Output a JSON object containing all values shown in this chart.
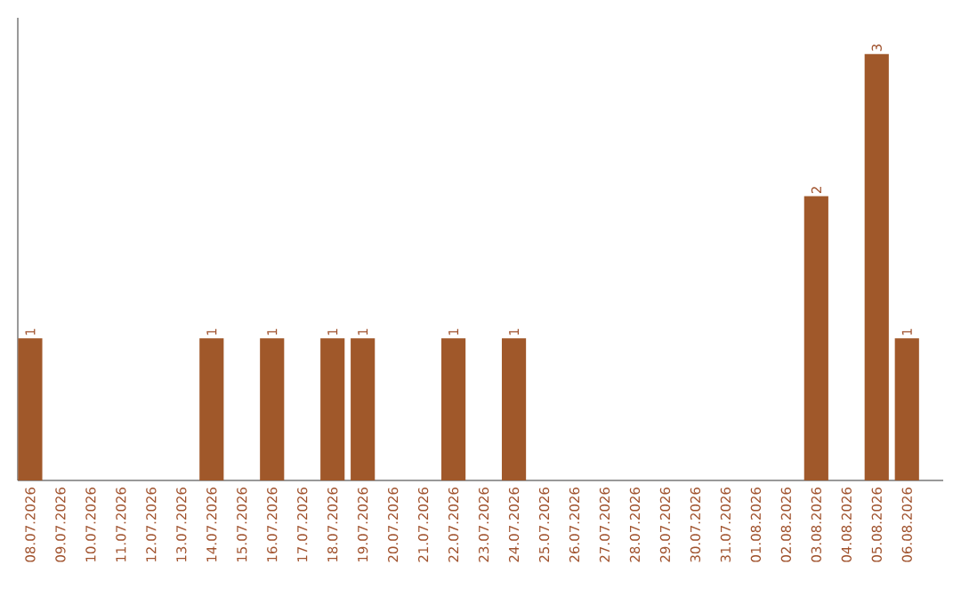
{
  "chart_data": {
    "type": "bar",
    "categories": [
      "08.07.2026",
      "09.07.2026",
      "10.07.2026",
      "11.07.2026",
      "12.07.2026",
      "13.07.2026",
      "14.07.2026",
      "15.07.2026",
      "16.07.2026",
      "17.07.2026",
      "18.07.2026",
      "19.07.2026",
      "20.07.2026",
      "21.07.2026",
      "22.07.2026",
      "23.07.2026",
      "24.07.2026",
      "25.07.2026",
      "26.07.2026",
      "27.07.2026",
      "28.07.2026",
      "29.07.2026",
      "30.07.2026",
      "31.07.2026",
      "01.08.2026",
      "02.08.2026",
      "03.08.2026",
      "04.08.2026",
      "05.08.2026",
      "06.08.2026"
    ],
    "values": [
      1,
      0,
      0,
      0,
      0,
      0,
      1,
      0,
      1,
      0,
      1,
      1,
      0,
      0,
      1,
      0,
      1,
      0,
      0,
      0,
      0,
      0,
      0,
      0,
      0,
      0,
      2,
      0,
      3,
      1
    ],
    "value_labels": [
      "1",
      null,
      null,
      null,
      null,
      null,
      "1",
      null,
      "1",
      null,
      "1",
      "1",
      null,
      null,
      "1",
      null,
      "1",
      null,
      null,
      null,
      null,
      null,
      null,
      null,
      null,
      null,
      "2",
      null,
      "3",
      "1"
    ],
    "color": "#a0582a"
  }
}
